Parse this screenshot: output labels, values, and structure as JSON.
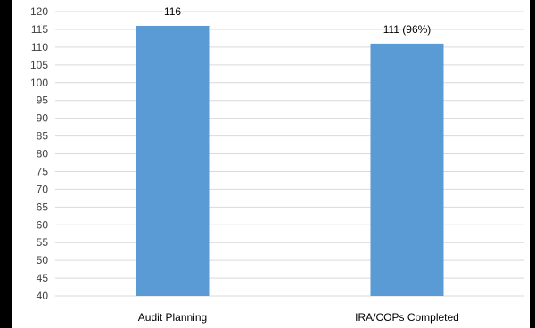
{
  "chart_data": {
    "type": "bar",
    "title": "",
    "xlabel": "",
    "ylabel": "",
    "categories": [
      "Audit Planning",
      "IRA/COPs Completed"
    ],
    "values": [
      116,
      111
    ],
    "data_labels": [
      "116",
      "111 (96%)"
    ],
    "ylim": [
      40,
      120
    ],
    "ytick_step": 5,
    "grid": true,
    "legend": "none",
    "colors": {
      "bar": "#5b9bd5",
      "grid": "#d9d9d9",
      "background": "#ffffff",
      "frame": "#000000"
    }
  }
}
